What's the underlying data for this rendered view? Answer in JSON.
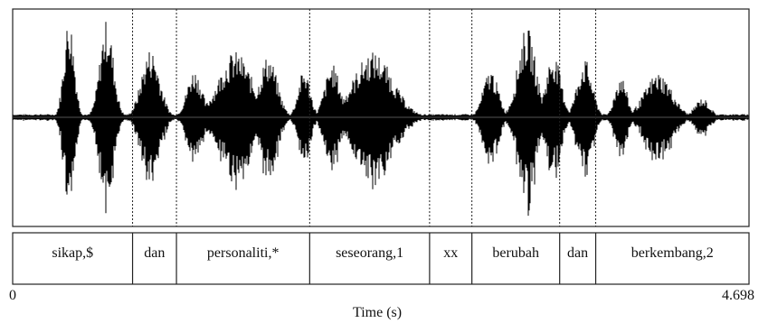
{
  "segments": [
    {
      "label": "sikap,$",
      "start": 0.0,
      "end": 0.765
    },
    {
      "label": "dan",
      "start": 0.765,
      "end": 1.045
    },
    {
      "label": "personaliti,*",
      "start": 1.045,
      "end": 1.895
    },
    {
      "label": "seseorang,1",
      "start": 1.895,
      "end": 2.66
    },
    {
      "label": "xx",
      "start": 2.66,
      "end": 2.93
    },
    {
      "label": "berubah",
      "start": 2.93,
      "end": 3.49
    },
    {
      "label": "dan",
      "start": 3.49,
      "end": 3.72
    },
    {
      "label": "berkembang,2",
      "start": 3.72,
      "end": 4.698
    }
  ],
  "time_axis": {
    "start_label": "0",
    "end_label": "4.698",
    "title": "Time (s)",
    "min": 0,
    "max": 4.698
  },
  "waveform": {
    "bursts": [
      {
        "center": 0.36,
        "width": 0.07,
        "amp": 0.95
      },
      {
        "center": 0.6,
        "width": 0.09,
        "amp": 0.92
      },
      {
        "center": 0.88,
        "width": 0.12,
        "amp": 0.65
      },
      {
        "center": 1.16,
        "width": 0.1,
        "amp": 0.45
      },
      {
        "center": 1.42,
        "width": 0.22,
        "amp": 0.62
      },
      {
        "center": 1.63,
        "width": 0.12,
        "amp": 0.58
      },
      {
        "center": 1.86,
        "width": 0.08,
        "amp": 0.45
      },
      {
        "center": 2.04,
        "width": 0.1,
        "amp": 0.5
      },
      {
        "center": 2.3,
        "width": 0.26,
        "amp": 0.62
      },
      {
        "center": 3.05,
        "width": 0.1,
        "amp": 0.45
      },
      {
        "center": 3.28,
        "width": 0.12,
        "amp": 0.85
      },
      {
        "center": 3.45,
        "width": 0.1,
        "amp": 0.6
      },
      {
        "center": 3.65,
        "width": 0.1,
        "amp": 0.55
      },
      {
        "center": 3.88,
        "width": 0.08,
        "amp": 0.4
      },
      {
        "center": 4.12,
        "width": 0.18,
        "amp": 0.42
      },
      {
        "center": 4.4,
        "width": 0.1,
        "amp": 0.18
      }
    ]
  }
}
